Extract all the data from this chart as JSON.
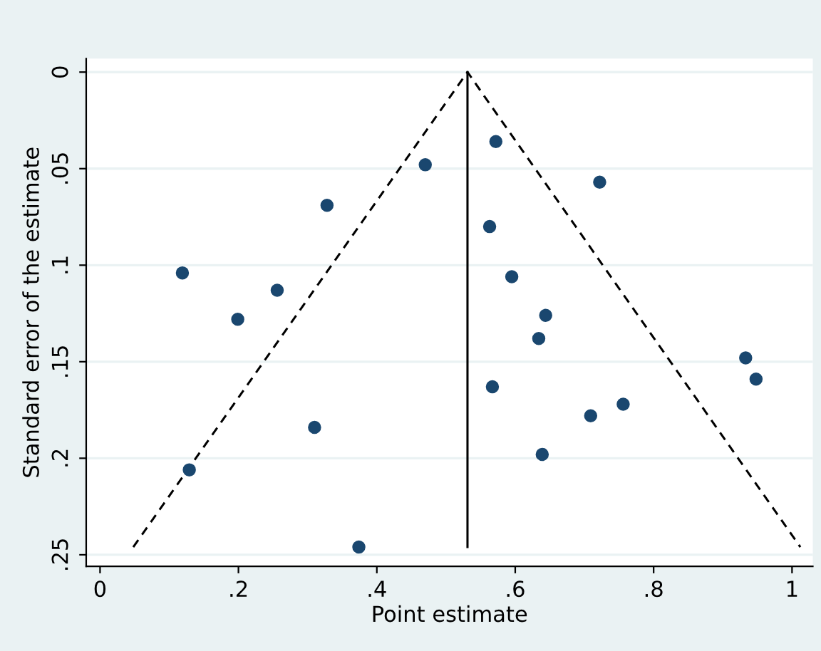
{
  "chart_data": {
    "type": "scatter",
    "xlabel": "Point estimate",
    "ylabel": "Standard error of the estimate",
    "xlim": [
      -0.02,
      1.03
    ],
    "ylim": [
      0.256,
      -0.007
    ],
    "xticks": [
      {
        "value": 0,
        "label": "0"
      },
      {
        "value": 0.2,
        "label": ".2"
      },
      {
        "value": 0.4,
        "label": ".4"
      },
      {
        "value": 0.6,
        "label": ".6"
      },
      {
        "value": 0.8,
        "label": ".8"
      },
      {
        "value": 1,
        "label": "1"
      }
    ],
    "yticks": [
      {
        "value": 0,
        "label": "0"
      },
      {
        "value": 0.05,
        "label": ".05"
      },
      {
        "value": 0.1,
        "label": ".1"
      },
      {
        "value": 0.15,
        "label": ".15"
      },
      {
        "value": 0.2,
        "label": ".2"
      },
      {
        "value": 0.25,
        "label": ".25"
      }
    ],
    "grid": "y",
    "legend": false,
    "series": [
      {
        "color": "#1a476f",
        "marker": "circle",
        "x": [
          0.119,
          0.199,
          0.256,
          0.328,
          0.47,
          0.572,
          0.722,
          0.563,
          0.595,
          0.644,
          0.634,
          0.567,
          0.709,
          0.756,
          0.639,
          0.933,
          0.948,
          0.31,
          0.129,
          0.374
        ],
        "values": [
          0.104,
          0.128,
          0.113,
          0.069,
          0.048,
          0.036,
          0.057,
          0.08,
          0.106,
          0.126,
          0.138,
          0.163,
          0.178,
          0.172,
          0.198,
          0.148,
          0.159,
          0.184,
          0.206,
          0.246
        ]
      },
      {
        "type": "line",
        "color": "#000000",
        "line_style": "solid",
        "x": [
          0.531,
          0.531
        ],
        "values": [
          0,
          0.246
        ]
      },
      {
        "type": "line",
        "color": "#000000",
        "line_style": "dashed",
        "x": [
          0.048,
          0.531,
          1.012
        ],
        "values": [
          0.246,
          0,
          0.246
        ]
      }
    ]
  }
}
